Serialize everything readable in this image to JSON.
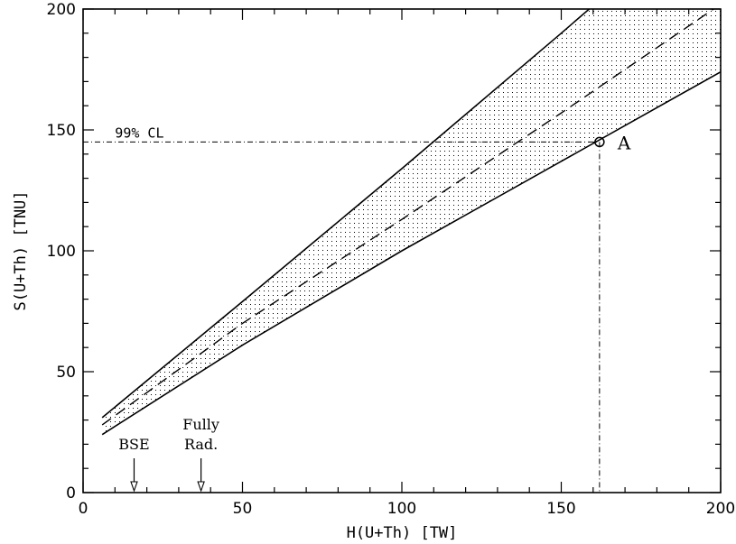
{
  "chart_data": {
    "type": "line",
    "xlabel": "H(U+Th) [TW]",
    "ylabel": "S(U+Th) [TNU]",
    "xlim": [
      0,
      200
    ],
    "ylim": [
      0,
      200
    ],
    "x_ticks": [
      0,
      50,
      100,
      150,
      200
    ],
    "y_ticks": [
      0,
      50,
      100,
      150,
      200
    ],
    "grid": false,
    "series": [
      {
        "role": "upper-bound",
        "style": "solid",
        "x": [
          6,
          50,
          100,
          150,
          200
        ],
        "y": [
          31,
          79,
          134,
          190,
          247
        ]
      },
      {
        "role": "central",
        "style": "dashed",
        "x": [
          6,
          50,
          100,
          150,
          200
        ],
        "y": [
          28,
          70,
          113,
          157,
          202
        ]
      },
      {
        "role": "lower-bound",
        "style": "solid",
        "x": [
          6,
          50,
          100,
          150,
          200
        ],
        "y": [
          24,
          61,
          100,
          137,
          174
        ]
      }
    ],
    "band": {
      "between": [
        "upper-bound",
        "lower-bound"
      ],
      "fill": "dotted"
    },
    "reference_lines": [
      {
        "orientation": "horizontal",
        "y": 145,
        "style": "dash-dot",
        "label": "99% CL"
      },
      {
        "orientation": "vertical",
        "x": 162,
        "style": "dash-dot"
      }
    ],
    "marked_point": {
      "x": 162,
      "y": 145,
      "label": "A"
    },
    "arrows": [
      {
        "x": 16,
        "label": "BSE"
      },
      {
        "x": 37,
        "label_lines": [
          "Fully",
          "Rad."
        ]
      }
    ],
    "colors": {
      "line": "#000000",
      "band_dots": "#000000",
      "background": "#ffffff"
    }
  }
}
